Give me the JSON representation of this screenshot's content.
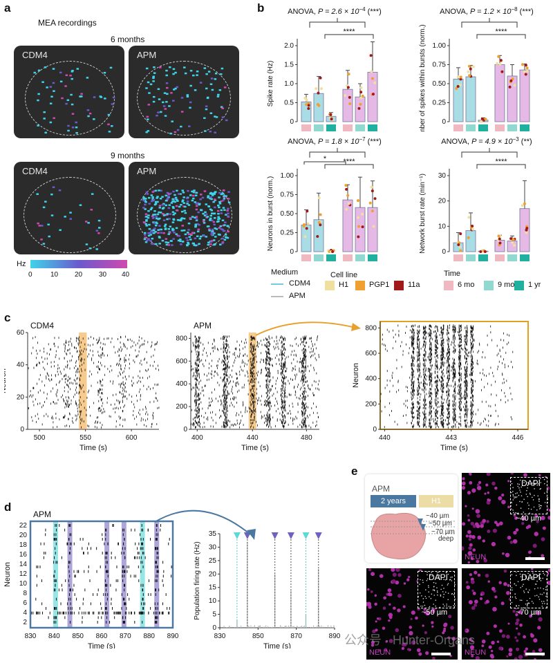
{
  "panels": {
    "a": "a",
    "b": "b",
    "c": "c",
    "d": "d",
    "e": "e"
  },
  "a": {
    "heading": "MEA recordings",
    "row1_label": "6 months",
    "row2_label": "9 months",
    "cdm4": "CDM4",
    "apm": "APM",
    "colorbar_unit": "Hz",
    "colorbar_ticks": [
      "0",
      "10",
      "20",
      "30",
      "40"
    ],
    "colorbar_start": "#3fd4ea",
    "colorbar_mid": "#6a5acd",
    "colorbar_end": "#d048b0"
  },
  "b": {
    "charts": [
      {
        "anova_prefix": "ANOVA, ",
        "anova_value": "P = 2.6 × 10",
        "anova_exp": "−4",
        "anova_sig": " (***)",
        "ylabel": "Spike rate (Hz)",
        "yticks": [
          "0",
          "0.5",
          "1.0",
          "1.5",
          "2.0"
        ],
        "sig": "****"
      },
      {
        "anova_prefix": "ANOVA, ",
        "anova_value": "P = 1.2 × 10",
        "anova_exp": "−8",
        "anova_sig": " (***)",
        "ylabel": "Number of spikes within bursts (norm.)",
        "yticks": [
          "0",
          "0.25",
          "0.50",
          "0.75",
          "1.00"
        ],
        "sig": "****"
      },
      {
        "anova_prefix": "ANOVA, ",
        "anova_value": "P = 1.8 × 10",
        "anova_exp": "−7",
        "anova_sig": " (***)",
        "ylabel": "Neurons in burst (norm.)",
        "yticks": [
          "0",
          "0.25",
          "0.50",
          "0.75",
          "1.00"
        ],
        "sig": "****",
        "sig2": "*"
      },
      {
        "anova_prefix": "ANOVA, ",
        "anova_value": "P = 4.9 × 10",
        "anova_exp": "−3",
        "anova_sig": " (**)",
        "ylabel": "Network burst rate (min⁻¹)",
        "yticks": [
          "0",
          "10",
          "20",
          "30"
        ],
        "sig": "****"
      }
    ],
    "legend": {
      "medium_title": "Medium",
      "medium_items": [
        "CDM4",
        "APM"
      ],
      "cellline_title": "Cell line",
      "cellline_items": [
        "H1",
        "PGP1",
        "11a"
      ],
      "time_title": "Time",
      "time_items": [
        "6 mo",
        "9 mo",
        "1 yr"
      ],
      "colors": {
        "cdm4_bar": "#a8dde6",
        "apm_bar": "#e6b8e6",
        "h1": "#f0e0a0",
        "pgp1": "#f0a030",
        "c11a": "#a01a1a",
        "mo6": "#f0b8c0",
        "mo9": "#90d8d0",
        "yr1": "#20b0a0"
      }
    }
  },
  "chart_data": [
    {
      "type": "bar",
      "title": "ANOVA, P = 2.6 × 10−4 (***)",
      "ylabel": "Spike rate (Hz)",
      "categories": [
        "CDM4 6 mo",
        "CDM4 9 mo",
        "CDM4 1 yr",
        "APM 6 mo",
        "APM 9 mo",
        "APM 1 yr"
      ],
      "values": [
        0.52,
        0.74,
        0.14,
        0.85,
        0.65,
        1.3
      ],
      "ylim": [
        0,
        2.0
      ]
    },
    {
      "type": "bar",
      "title": "ANOVA, P = 1.2 × 10−8 (***)",
      "ylabel": "Number of spikes within bursts (norm.)",
      "categories": [
        "CDM4 6 mo",
        "CDM4 9 mo",
        "CDM4 1 yr",
        "APM 6 mo",
        "APM 9 mo",
        "APM 1 yr"
      ],
      "values": [
        0.56,
        0.59,
        0.02,
        0.75,
        0.6,
        0.68
      ],
      "ylim": [
        0,
        1.0
      ]
    },
    {
      "type": "bar",
      "title": "ANOVA, P = 1.8 × 10−7 (***)",
      "ylabel": "Neurons in burst (norm.)",
      "categories": [
        "CDM4 6 mo",
        "CDM4 9 mo",
        "CDM4 1 yr",
        "APM 6 mo",
        "APM 9 mo",
        "APM 1 yr"
      ],
      "values": [
        0.35,
        0.42,
        0.0,
        0.68,
        0.58,
        0.58
      ],
      "ylim": [
        0,
        1.0
      ]
    },
    {
      "type": "bar",
      "title": "ANOVA, P = 4.9 × 10−3 (**)",
      "ylabel": "Network burst rate (min⁻¹)",
      "categories": [
        "CDM4 6 mo",
        "CDM4 9 mo",
        "CDM4 1 yr",
        "APM 6 mo",
        "APM 9 mo",
        "APM 1 yr"
      ],
      "values": [
        3.5,
        8.3,
        0.2,
        4.5,
        4.2,
        17
      ],
      "ylim": [
        0,
        30
      ]
    }
  ],
  "c": {
    "raster1": {
      "title": "CDM4",
      "ylabel": "Neuron",
      "xlabel": "Time (s)",
      "xticks": [
        "500",
        "550",
        "600"
      ],
      "yticks": [
        "0",
        "20",
        "40",
        "60"
      ]
    },
    "raster2": {
      "title": "APM",
      "xlabel": "Time (s)",
      "xticks": [
        "400",
        "440",
        "480"
      ],
      "yticks": [
        "0",
        "200",
        "400",
        "600",
        "800"
      ]
    },
    "raster3": {
      "ylabel": "Neuron",
      "xlabel": "Time (s)",
      "xticks": [
        "440",
        "443",
        "446"
      ],
      "yticks": [
        "0",
        "200",
        "400",
        "600",
        "800"
      ]
    }
  },
  "d": {
    "raster": {
      "title": "APM",
      "ylabel": "Neuron",
      "xlabel": "Time (s)",
      "xticks": [
        "830",
        "840",
        "850",
        "860",
        "870",
        "880",
        "890"
      ],
      "yticks": [
        "2",
        "4",
        "6",
        "8",
        "10",
        "12",
        "14",
        "16",
        "18",
        "20",
        "22"
      ]
    },
    "rate": {
      "ylabel": "Population firing rate (Hz)",
      "xlabel": "Time (s)",
      "xticks": [
        "830",
        "850",
        "870",
        "890"
      ],
      "yticks": [
        "0",
        "5",
        "10",
        "15",
        "20",
        "25",
        "30",
        "35"
      ]
    }
  },
  "e": {
    "model_title": "APM",
    "duration": "2 years",
    "cell_line": "H1",
    "depths": [
      "~40 µm",
      "~50 µm",
      "~70 µm",
      "deep"
    ],
    "dapi": "DAPI",
    "neun": "NEUN",
    "depth_labels": [
      "~40 µm",
      "~50 µm",
      "~70 µm"
    ]
  },
  "watermark": "公众号 · Hunter-Organs"
}
